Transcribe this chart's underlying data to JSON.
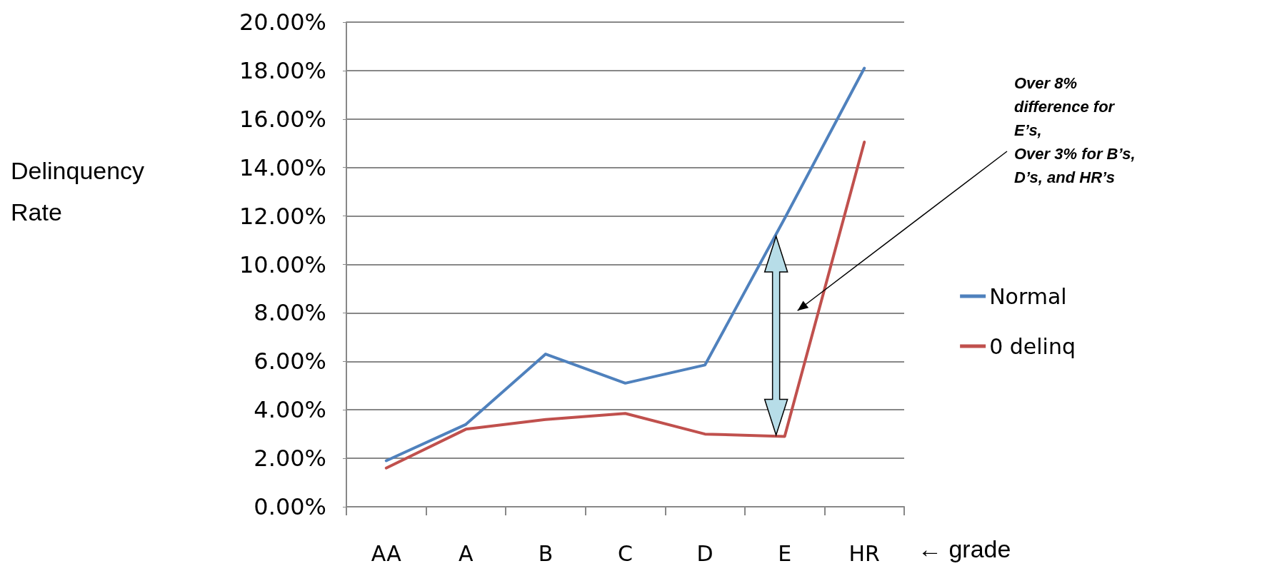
{
  "chart_data": {
    "type": "line",
    "ylabel": "Delinquency\nRate",
    "xlabel": "← grade",
    "categories": [
      "AA",
      "A",
      "B",
      "C",
      "D",
      "E",
      "HR"
    ],
    "series": [
      {
        "name": "Normal",
        "color": "#4f81bd",
        "values": [
          1.9,
          3.4,
          6.3,
          5.1,
          5.85,
          11.9,
          18.1
        ]
      },
      {
        "name": "0 delinq",
        "color": "#c0504d",
        "values": [
          1.6,
          3.2,
          3.6,
          3.85,
          3.0,
          2.9,
          15.05
        ]
      }
    ],
    "ylim": [
      0,
      20
    ],
    "yticks": [
      {
        "value": 0,
        "label": "0.00%"
      },
      {
        "value": 2,
        "label": "2.00%"
      },
      {
        "value": 4,
        "label": "4.00%"
      },
      {
        "value": 6,
        "label": "6.00%"
      },
      {
        "value": 8,
        "label": "8.00%"
      },
      {
        "value": 10,
        "label": "10.00%"
      },
      {
        "value": 12,
        "label": "12.00%"
      },
      {
        "value": 14,
        "label": "14.00%"
      },
      {
        "value": 16,
        "label": "16.00%"
      },
      {
        "value": 18,
        "label": "18.00%"
      },
      {
        "value": 20,
        "label": "20.00%"
      }
    ],
    "grid": "y",
    "legend": "right",
    "marker": "none",
    "line_style": "solid",
    "annotations": [
      "Over 8%\ndifference for\nE’s,\nOver 3% for B’s,\nD’s, and HR’s"
    ]
  }
}
